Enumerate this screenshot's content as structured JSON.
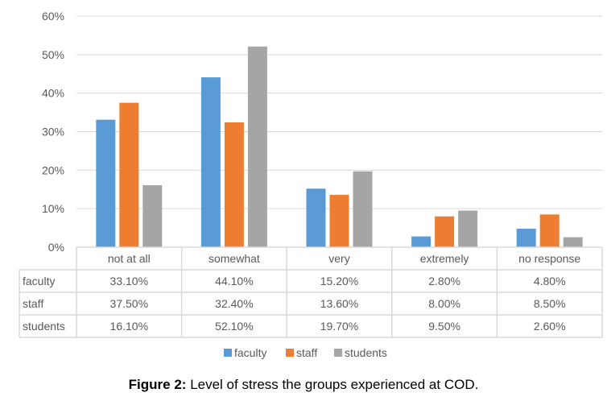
{
  "chart_data": {
    "type": "bar",
    "title": "",
    "xlabel": "",
    "ylabel": "",
    "ylim": [
      0,
      60
    ],
    "yticks": [
      "0%",
      "10%",
      "20%",
      "30%",
      "40%",
      "50%",
      "60%"
    ],
    "ytick_values": [
      0,
      10,
      20,
      30,
      40,
      50,
      60
    ],
    "grid": true,
    "legend_position": "bottom",
    "categories": [
      "not at all",
      "somewhat",
      "very",
      "extremely",
      "no response"
    ],
    "series": [
      {
        "name": "faculty",
        "color": "#5B9BD5",
        "values": [
          33.1,
          44.1,
          15.2,
          2.8,
          4.8
        ],
        "labels": [
          "33.10%",
          "44.10%",
          "15.20%",
          "2.80%",
          "4.80%"
        ]
      },
      {
        "name": "staff",
        "color": "#ED7D31",
        "values": [
          37.5,
          32.4,
          13.6,
          8.0,
          8.5
        ],
        "labels": [
          "37.50%",
          "32.40%",
          "13.60%",
          "8.00%",
          "8.50%"
        ]
      },
      {
        "name": "students",
        "color": "#A5A5A5",
        "values": [
          16.1,
          52.1,
          19.7,
          9.5,
          2.6
        ],
        "labels": [
          "16.10%",
          "52.10%",
          "19.70%",
          "9.50%",
          "2.60%"
        ]
      }
    ],
    "data_table": true
  },
  "caption": {
    "label": "Figure 2:",
    "text": " Level of stress the groups experienced at COD."
  }
}
